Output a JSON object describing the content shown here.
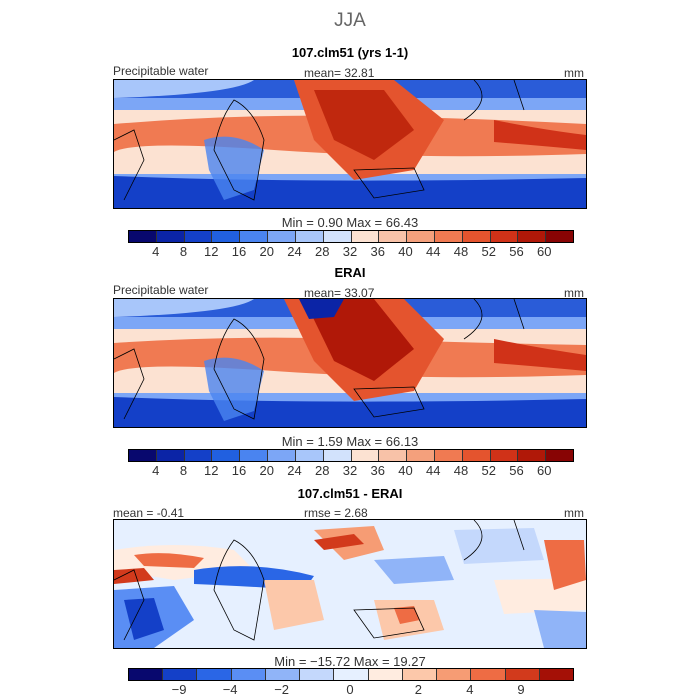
{
  "figure": {
    "title": "JJA"
  },
  "panels": [
    {
      "title": "107.clm51 (yrs 1-1)",
      "left_label": "Precipitable water",
      "center_label": "mean=  32.81",
      "right_label": "mm",
      "stats": "Min =    0.90  Max =   66.43",
      "colorbar": {
        "ticks": [
          "4",
          "8",
          "12",
          "16",
          "20",
          "24",
          "28",
          "32",
          "36",
          "40",
          "44",
          "48",
          "52",
          "56",
          "60"
        ]
      }
    },
    {
      "title": "ERAI",
      "left_label": "Precipitable water",
      "center_label": "mean=  33.07",
      "right_label": "mm",
      "stats": "Min =    1.59  Max =   66.13",
      "colorbar": {
        "ticks": [
          "4",
          "8",
          "12",
          "16",
          "20",
          "24",
          "28",
          "32",
          "36",
          "40",
          "44",
          "48",
          "52",
          "56",
          "60"
        ]
      }
    },
    {
      "title": "107.clm51 - ERAI",
      "left_label": "mean =  -0.41",
      "center_label": "rmse =    2.68",
      "right_label": "mm",
      "stats": "Min = −15.72  Max =   19.27",
      "colorbar": {
        "ticks": [
          "−9",
          "−4",
          "−2",
          "0",
          "2",
          "4",
          "9"
        ]
      }
    }
  ],
  "colors": {
    "abs_scale": [
      "#08086e",
      "#0b24a6",
      "#1440c8",
      "#2160e0",
      "#4a84f0",
      "#7ca6f6",
      "#a8c6fa",
      "#d2e2fc",
      "#fce2d2",
      "#f8c2a8",
      "#f4a07c",
      "#f07a52",
      "#e4542e",
      "#d03218",
      "#b01808",
      "#880404"
    ],
    "diff_scale": [
      "#08086e",
      "#1440c8",
      "#2a66e6",
      "#5a8ef4",
      "#90b4f8",
      "#c4d8fc",
      "#e6f0ff",
      "#ffece0",
      "#fcc8aa",
      "#f69c74",
      "#ee6c44",
      "#d23a1c",
      "#a41006"
    ]
  }
}
